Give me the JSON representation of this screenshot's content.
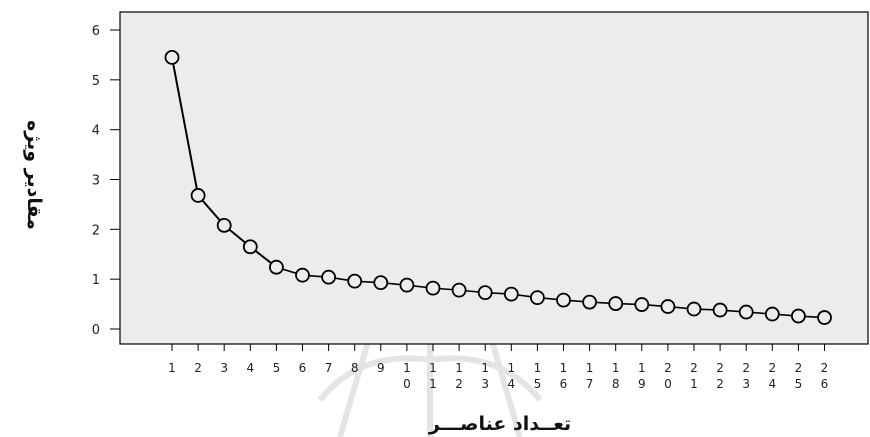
{
  "chart_data": {
    "type": "line",
    "title": "",
    "xlabel": "تعــداد عناصـــر",
    "ylabel": "مقادير ويژه",
    "ylim": [
      0,
      6
    ],
    "yticks": [
      "0",
      "1",
      "2",
      "3",
      "4",
      "5",
      "6"
    ],
    "x": [
      1,
      2,
      3,
      4,
      5,
      6,
      7,
      8,
      9,
      10,
      11,
      12,
      13,
      14,
      15,
      16,
      17,
      18,
      19,
      20,
      21,
      22,
      23,
      24,
      25,
      26
    ],
    "xtick_labels": [
      [
        "1"
      ],
      [
        "2"
      ],
      [
        "3"
      ],
      [
        "4"
      ],
      [
        "5"
      ],
      [
        "6"
      ],
      [
        "7"
      ],
      [
        "8"
      ],
      [
        "9"
      ],
      [
        "1",
        "0"
      ],
      [
        "1",
        "1"
      ],
      [
        "1",
        "2"
      ],
      [
        "1",
        "3"
      ],
      [
        "1",
        "4"
      ],
      [
        "1",
        "5"
      ],
      [
        "1",
        "6"
      ],
      [
        "1",
        "7"
      ],
      [
        "1",
        "8"
      ],
      [
        "1",
        "9"
      ],
      [
        "2",
        "0"
      ],
      [
        "2",
        "1"
      ],
      [
        "2",
        "2"
      ],
      [
        "2",
        "3"
      ],
      [
        "2",
        "4"
      ],
      [
        "2",
        "5"
      ],
      [
        "2",
        "6"
      ]
    ],
    "values": [
      5.45,
      2.68,
      2.08,
      1.65,
      1.24,
      1.08,
      1.04,
      0.96,
      0.93,
      0.88,
      0.82,
      0.78,
      0.73,
      0.7,
      0.63,
      0.58,
      0.54,
      0.51,
      0.49,
      0.45,
      0.4,
      0.38,
      0.34,
      0.3,
      0.26,
      0.23
    ],
    "grid": false,
    "legend": "none",
    "marker": "open-circle",
    "colors": {
      "plot_background": "#ececec",
      "line": "#000000",
      "axis": "#000000"
    }
  }
}
